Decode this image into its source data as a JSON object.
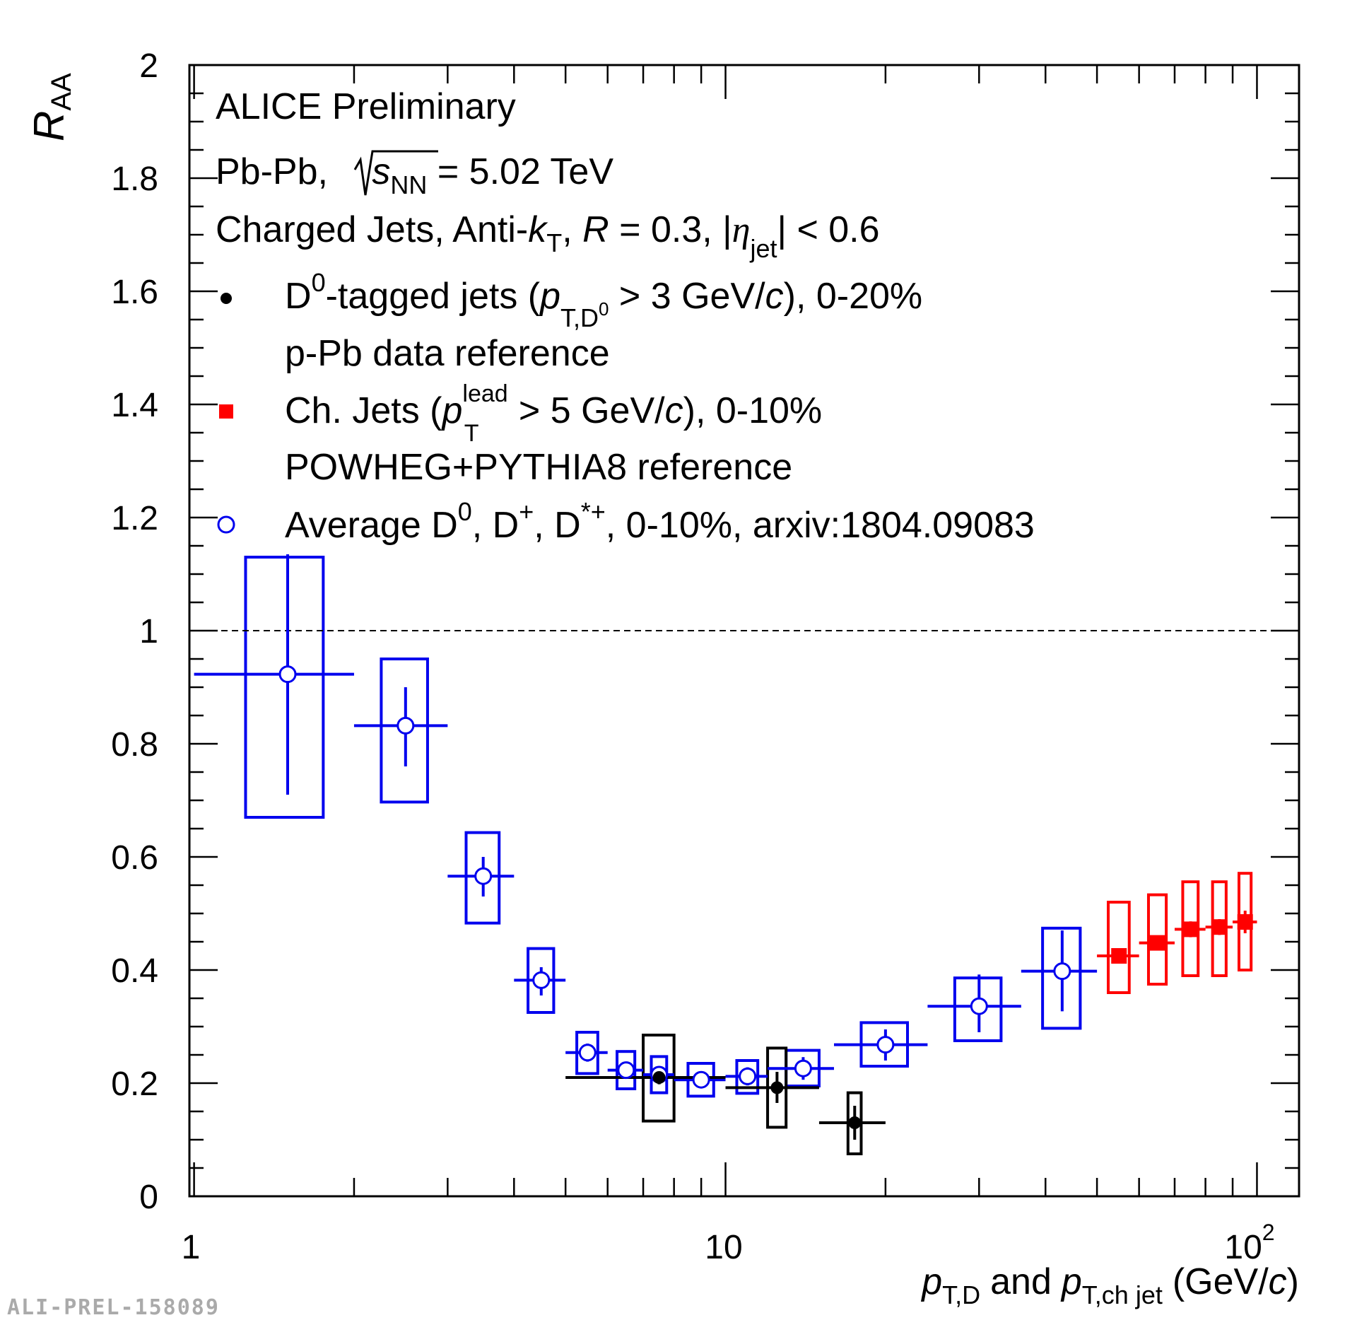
{
  "chart_data": {
    "type": "scatter",
    "x_scale": "log",
    "y_scale": "linear",
    "xlim": [
      0.98,
      120
    ],
    "ylim": [
      0,
      2
    ],
    "ylabel_main": "R",
    "ylabel_sub": "AA",
    "xlabel": {
      "p1": "p",
      "p1_sub": "T,D",
      "and": "and",
      "p2": "p",
      "p2_sub": "T,ch jet",
      "unit_open": "(GeV/",
      "unit_c": "c",
      "unit_close": ")"
    },
    "x_tick_labels": [
      "1",
      "10",
      "10",
      "2"
    ],
    "y_tick_labels": [
      "0",
      "0.2",
      "0.4",
      "0.6",
      "0.8",
      "1",
      "1.2",
      "1.4",
      "1.6",
      "1.8",
      "2"
    ],
    "reference_line_y": 1,
    "annotations": {
      "title": "ALICE Preliminary",
      "system_prefix": "Pb-Pb, ",
      "sqrt_s": "s",
      "sqrt_sub": "NN",
      "system_suffix": " = 5.02 TeV",
      "jets_prefix": "Charged Jets, Anti-",
      "k": "k",
      "k_sub": "T",
      "comma": ", ",
      "R": "R",
      "R_eq": " = 0.3, |",
      "eta": "η",
      "eta_sub": "jet",
      "eta_end": "| < 0.6"
    },
    "legend": [
      {
        "marker": "filled-circle",
        "color": "#000000",
        "line1": {
          "D": "D",
          "sup0": "0",
          "a": "-tagged jets (",
          "p": "p",
          "sub": "T,D",
          "subsup": "0",
          "b": " > 3 GeV/",
          "c": "c",
          "d": "), 0-20%"
        },
        "line2": "p-Pb data reference"
      },
      {
        "marker": "filled-square",
        "color": "#ff0000",
        "line1": {
          "a": "Ch. Jets (",
          "p": "p",
          "sup": "lead",
          "sub": "T",
          "b": " > 5 GeV/",
          "c": "c",
          "d": "), 0-10%"
        },
        "line2": "POWHEG+PYTHIA8 reference"
      },
      {
        "marker": "open-circle",
        "color": "#0000ee",
        "line1": {
          "a": "Average D",
          "s1": "0",
          "b": ", D",
          "s2": "+",
          "c": ", D",
          "s3": "*+",
          "d": ", 0-10%, arxiv:1804.09083"
        }
      }
    ],
    "series": [
      {
        "name": "Average D0, D+, D*+, 0-10%",
        "color": "#0000ee",
        "marker": "open-circle",
        "points": [
          {
            "x": 1.5,
            "xlo": 1,
            "xhi": 2,
            "y": 0.923,
            "stat": [
              0.71,
              1.135
            ],
            "sys_x": [
              1.25,
              1.75
            ],
            "sys_y": [
              0.67,
              1.13
            ]
          },
          {
            "x": 2.5,
            "xlo": 2,
            "xhi": 3,
            "y": 0.832,
            "stat": [
              0.76,
              0.9
            ],
            "sys_x": [
              2.25,
              2.75
            ],
            "sys_y": [
              0.697,
              0.95
            ]
          },
          {
            "x": 3.5,
            "xlo": 3,
            "xhi": 4,
            "y": 0.566,
            "stat": [
              0.53,
              0.6
            ],
            "sys_x": [
              3.25,
              3.75
            ],
            "sys_y": [
              0.483,
              0.643
            ]
          },
          {
            "x": 4.5,
            "xlo": 4,
            "xhi": 5,
            "y": 0.382,
            "stat": [
              0.355,
              0.405
            ],
            "sys_x": [
              4.25,
              4.75
            ],
            "sys_y": [
              0.325,
              0.438
            ]
          },
          {
            "x": 5.5,
            "xlo": 5,
            "xhi": 6,
            "y": 0.254,
            "stat": [
              0.238,
              0.27
            ],
            "sys_x": [
              5.25,
              5.75
            ],
            "sys_y": [
              0.217,
              0.29
            ]
          },
          {
            "x": 6.5,
            "xlo": 6,
            "xhi": 7,
            "y": 0.223,
            "stat": [
              0.208,
              0.238
            ],
            "sys_x": [
              6.25,
              6.75
            ],
            "sys_y": [
              0.19,
              0.256
            ]
          },
          {
            "x": 7.5,
            "xlo": 7,
            "xhi": 8,
            "y": 0.215,
            "stat": [
              0.2,
              0.23
            ],
            "sys_x": [
              7.25,
              7.75
            ],
            "sys_y": [
              0.183,
              0.247
            ]
          },
          {
            "x": 9,
            "xlo": 8,
            "xhi": 10,
            "y": 0.206,
            "stat": [
              0.194,
              0.22
            ],
            "sys_x": [
              8.5,
              9.5
            ],
            "sys_y": [
              0.177,
              0.235
            ]
          },
          {
            "x": 11,
            "xlo": 10,
            "xhi": 12,
            "y": 0.212,
            "stat": [
              0.196,
              0.228
            ],
            "sys_x": [
              10.5,
              11.5
            ],
            "sys_y": [
              0.182,
              0.24
            ]
          },
          {
            "x": 14,
            "xlo": 12,
            "xhi": 16,
            "y": 0.226,
            "stat": [
              0.206,
              0.246
            ],
            "sys_x": [
              13,
              15
            ],
            "sys_y": [
              0.195,
              0.258
            ]
          },
          {
            "x": 20,
            "xlo": 16,
            "xhi": 24,
            "y": 0.268,
            "stat": [
              0.24,
              0.295
            ],
            "sys_x": [
              18,
              22
            ],
            "sys_y": [
              0.23,
              0.307
            ]
          },
          {
            "x": 30,
            "xlo": 24,
            "xhi": 36,
            "y": 0.336,
            "stat": [
              0.29,
              0.392
            ],
            "sys_x": [
              27,
              33
            ],
            "sys_y": [
              0.275,
              0.386
            ]
          },
          {
            "x": 43,
            "xlo": 36,
            "xhi": 50,
            "y": 0.398,
            "stat": [
              0.327,
              0.47
            ],
            "sys_x": [
              39.5,
              46.5
            ],
            "sys_y": [
              0.297,
              0.474
            ]
          }
        ]
      },
      {
        "name": "D0-tagged jets, 0-20%",
        "color": "#000000",
        "marker": "filled-circle",
        "points": [
          {
            "x": 7.5,
            "xlo": 5,
            "xhi": 10,
            "y": 0.21,
            "stat": [
              0.198,
              0.222
            ],
            "sys_x": [
              7,
              8
            ],
            "sys_y": [
              0.133,
              0.285
            ]
          },
          {
            "x": 12.5,
            "xlo": 10,
            "xhi": 15,
            "y": 0.192,
            "stat": [
              0.165,
              0.22
            ],
            "sys_x": [
              12,
              13
            ],
            "sys_y": [
              0.122,
              0.262
            ]
          },
          {
            "x": 17.5,
            "xlo": 15,
            "xhi": 20,
            "y": 0.13,
            "stat": [
              0.1,
              0.16
            ],
            "sys_x": [
              17,
              18
            ],
            "sys_y": [
              0.075,
              0.183
            ]
          }
        ]
      },
      {
        "name": "Ch. Jets, 0-10%",
        "color": "#ff0000",
        "marker": "filled-square",
        "points": [
          {
            "x": 55,
            "xlo": 50,
            "xhi": 60,
            "y": 0.425,
            "stat": [
              0.413,
              0.437
            ],
            "sys_x": [
              52.5,
              57.5
            ],
            "sys_y": [
              0.36,
              0.52
            ]
          },
          {
            "x": 65,
            "xlo": 60,
            "xhi": 70,
            "y": 0.448,
            "stat": [
              0.436,
              0.46
            ],
            "sys_x": [
              62.5,
              67.5
            ],
            "sys_y": [
              0.375,
              0.533
            ]
          },
          {
            "x": 75,
            "xlo": 70,
            "xhi": 80,
            "y": 0.472,
            "stat": [
              0.458,
              0.486
            ],
            "sys_x": [
              72.5,
              77.5
            ],
            "sys_y": [
              0.39,
              0.556
            ]
          },
          {
            "x": 85,
            "xlo": 80,
            "xhi": 90,
            "y": 0.476,
            "stat": [
              0.462,
              0.49
            ],
            "sys_x": [
              82.5,
              87.5
            ],
            "sys_y": [
              0.39,
              0.556
            ]
          },
          {
            "x": 95,
            "xlo": 90,
            "xhi": 100,
            "y": 0.485,
            "stat": [
              0.465,
              0.505
            ],
            "sys_x": [
              92.5,
              97.5
            ],
            "sys_y": [
              0.4,
              0.571
            ]
          }
        ]
      }
    ]
  },
  "watermark": "ALI-PREL-158089"
}
